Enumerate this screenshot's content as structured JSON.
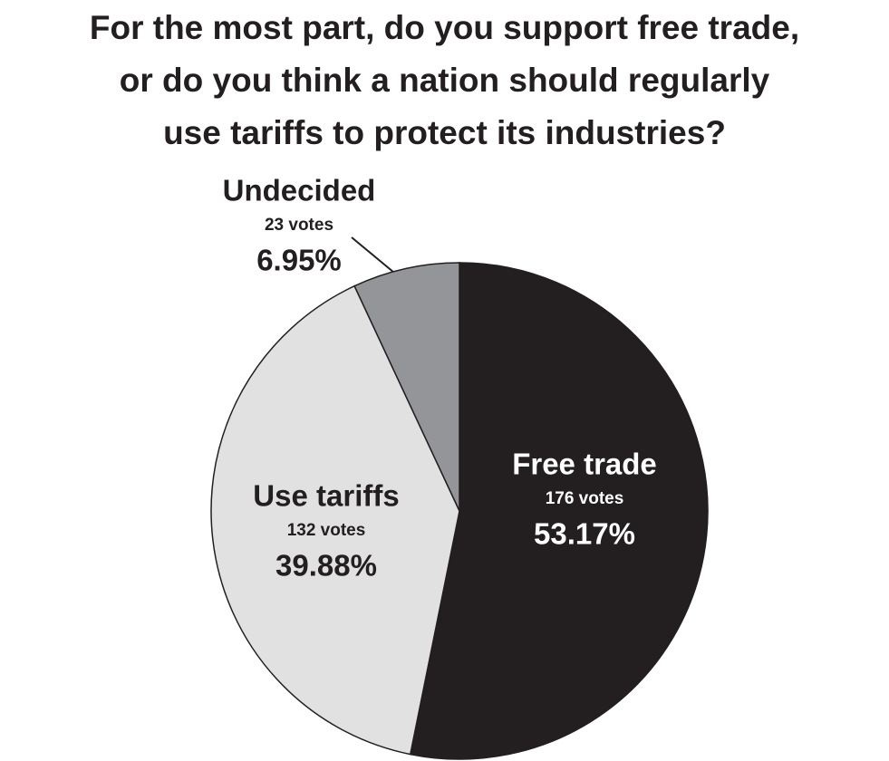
{
  "chart_data": {
    "type": "pie",
    "title": "For the most part, do you support free trade,\nor do you think a nation should regularly\nuse tariffs to protect its industries?",
    "categories": [
      "Free trade",
      "Use tariffs",
      "Undecided"
    ],
    "values": [
      53.17,
      39.88,
      6.95
    ],
    "value_labels": [
      "53.17%",
      "39.88%",
      "6.95%"
    ],
    "vote_labels": [
      "176 votes",
      "132 votes",
      "23 votes"
    ],
    "colors": [
      "#231f20",
      "#e1e1e2",
      "#939598"
    ]
  }
}
